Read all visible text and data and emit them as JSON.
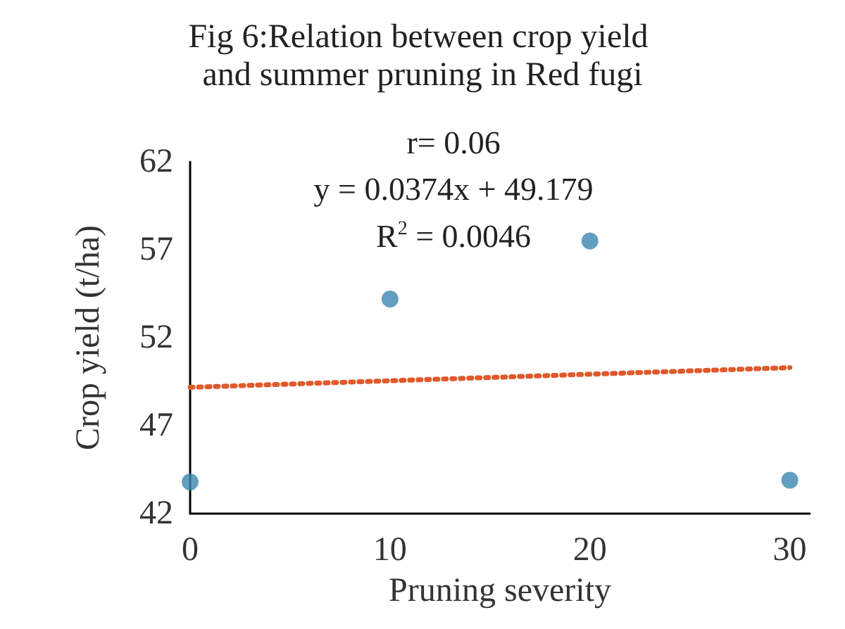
{
  "chart_data": {
    "type": "scatter",
    "title": "Fig 6:Relation between crop yield and summer pruning in Red fugi",
    "xlabel": "Pruning severity",
    "ylabel": "Crop yield (t/ha)",
    "annotations": [
      "r= 0.06",
      "y = 0.0374x + 49.179",
      "R$^{2}$ = 0.0046"
    ],
    "series": [
      {
        "color": "#3b86b0",
        "x": [
          0,
          10,
          20,
          30
        ],
        "values": [
          43.8,
          54.2,
          57.5,
          43.9
        ],
        "marker": "circle"
      },
      {
        "type": "line",
        "color": "#e0592a",
        "x": [
          0,
          30
        ],
        "values": [
          49.18,
          50.3
        ],
        "line_style": "dotted",
        "marker": "none"
      }
    ],
    "xlim": [
      0,
      31
    ],
    "xticks": [
      0,
      10,
      20,
      30
    ],
    "ylim": [
      42,
      62
    ],
    "yticks": [
      42,
      47,
      52,
      57,
      62
    ],
    "grid": false
  }
}
